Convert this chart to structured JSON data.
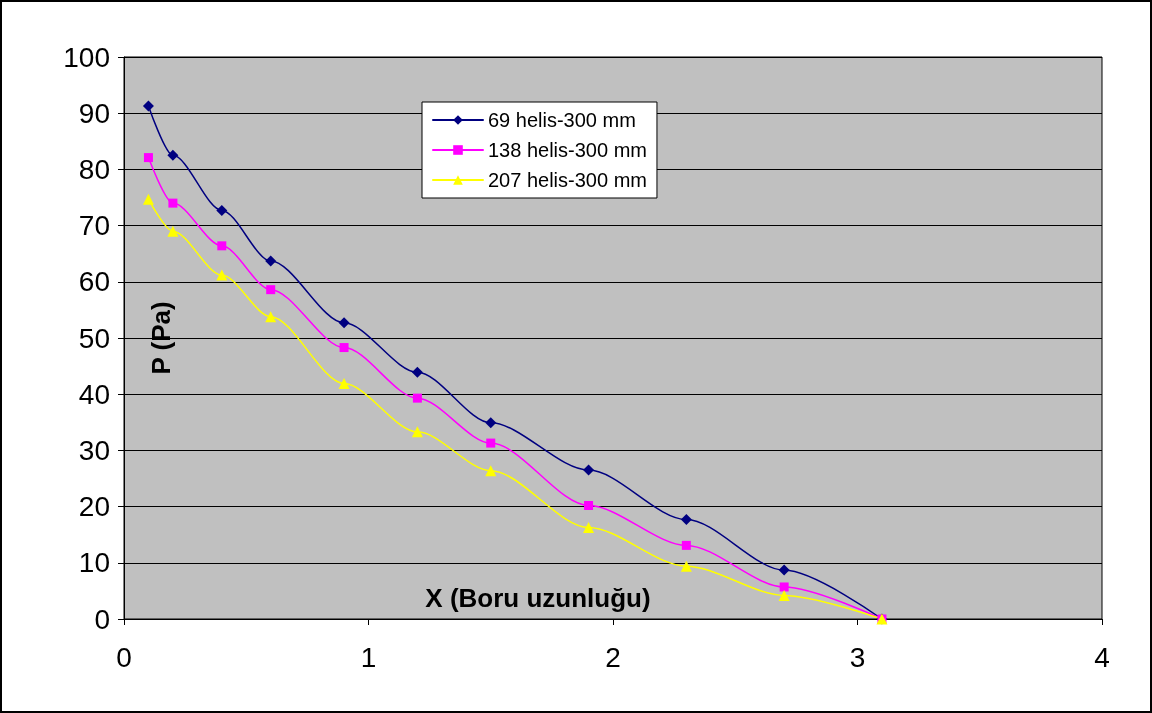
{
  "chart_data": {
    "type": "line",
    "xlabel": "X (Boru uzunluğu)",
    "ylabel": "P (Pa)",
    "xlim": [
      0,
      4
    ],
    "xticks": [
      0,
      1,
      2,
      3,
      4
    ],
    "ylim": [
      0,
      100
    ],
    "yticks": [
      0,
      10,
      20,
      30,
      40,
      50,
      60,
      70,
      80,
      90,
      100
    ],
    "grid": "y",
    "legend": "top",
    "line_style": "solid",
    "x": [
      0.1,
      0.2,
      0.4,
      0.6,
      0.9,
      1.2,
      1.5,
      1.9,
      2.3,
      2.7,
      3.1
    ],
    "series": [
      {
        "name": "69 helis-300 mm",
        "color": "#000080",
        "marker": "diamond",
        "values": [
          91.3,
          82.5,
          72.7,
          63.7,
          52.7,
          43.9,
          34.9,
          26.5,
          17.7,
          8.7,
          0
        ]
      },
      {
        "name": "138 helis-300 mm",
        "color": "#ff00ff",
        "marker": "square",
        "values": [
          82.1,
          74,
          66.4,
          58.6,
          48.3,
          39.3,
          31.3,
          20.2,
          13.1,
          5.7,
          0
        ]
      },
      {
        "name": "207 helis-300 mm",
        "color": "#ffff00",
        "marker": "triangle",
        "values": [
          74.7,
          69,
          61.2,
          53.8,
          41.9,
          33.3,
          26.4,
          16.3,
          9.4,
          4.2,
          0
        ]
      }
    ]
  }
}
